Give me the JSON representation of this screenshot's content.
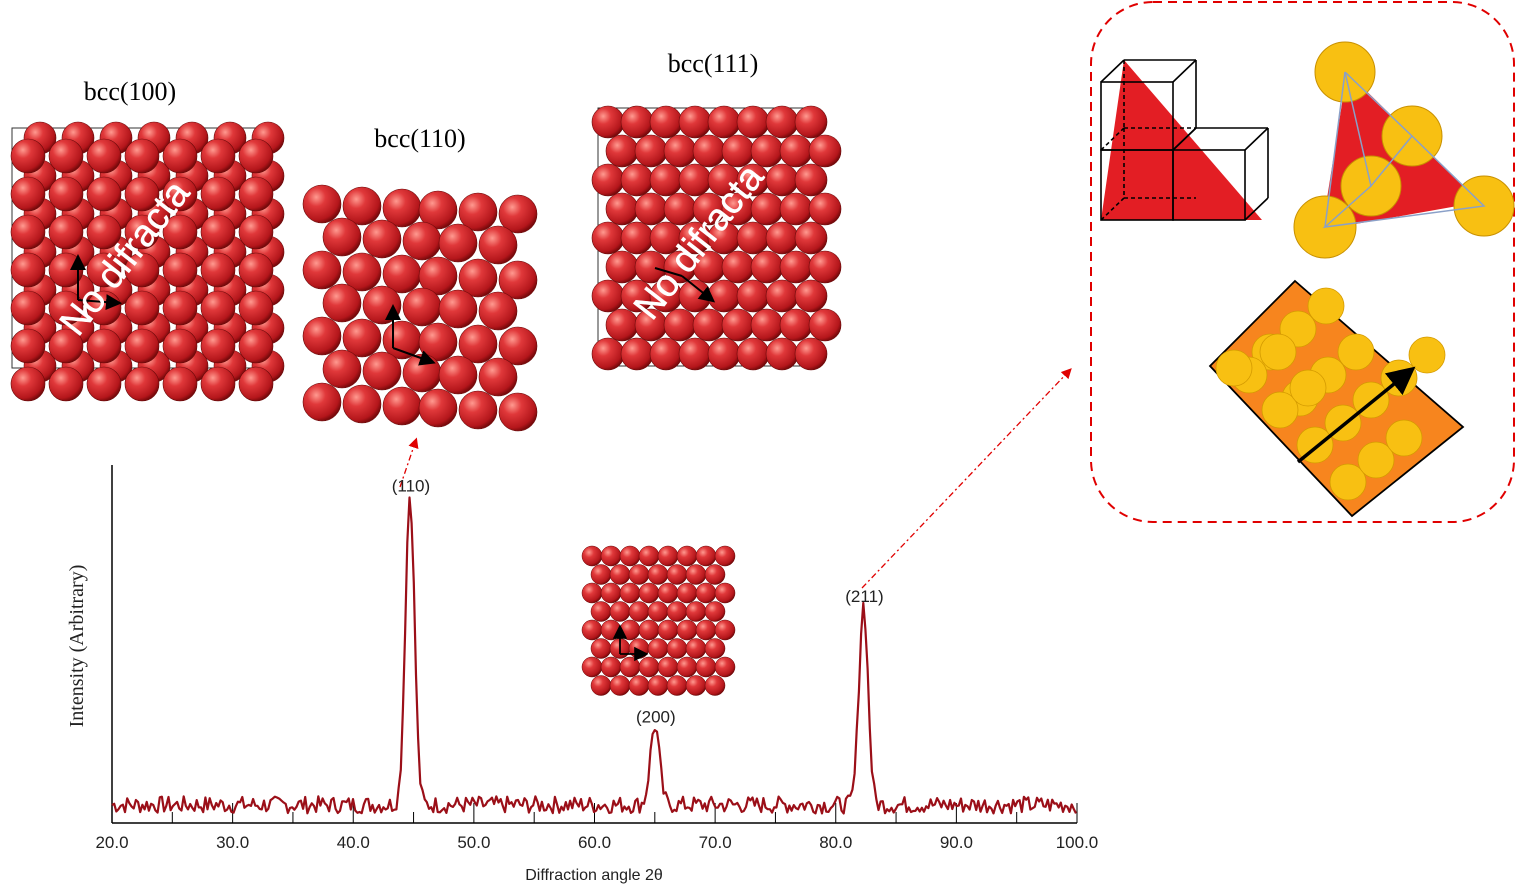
{
  "colors": {
    "atom_red": "#d8262b",
    "atom_highlight": "#ff9a90",
    "atom_dark": "#7a0a0c",
    "triangle_red": "#e31e24",
    "atom_yellow": "#f8c012",
    "plane_orange": "#f7851e",
    "dashed_frame": "#e00000",
    "trace": "#9b0f18"
  },
  "lattices": {
    "bcc100": {
      "title": "bcc(100)",
      "overlay": "No difracta"
    },
    "bcc110": {
      "title": "bcc(110)"
    },
    "bcc111": {
      "title": "bcc(111)",
      "overlay": "No difracta"
    }
  },
  "icons": [
    "cube-triangle-icon",
    "tetrahedral-spheres-icon",
    "plane-stack-icon",
    "axis-arrow-icon"
  ],
  "chart_data": {
    "type": "line",
    "xlabel": "Diffraction angle 2θ",
    "ylabel": "Intensity (Arbitrary)",
    "xlim": [
      20.0,
      100.0
    ],
    "x_tick_labels": [
      "20.0",
      "30.0",
      "40.0",
      "50.0",
      "60.0",
      "70.0",
      "80.0",
      "90.0",
      "100.0"
    ],
    "x_ticks": [
      20,
      30,
      40,
      50,
      60,
      70,
      80,
      90,
      100
    ],
    "ylim": [
      0,
      1.0
    ],
    "peaks": [
      {
        "label": "(110)",
        "x": 44.7,
        "y": 0.9
      },
      {
        "label": "(200)",
        "x": 65.0,
        "y": 0.23
      },
      {
        "label": "(211)",
        "x": 82.3,
        "y": 0.58
      }
    ]
  }
}
